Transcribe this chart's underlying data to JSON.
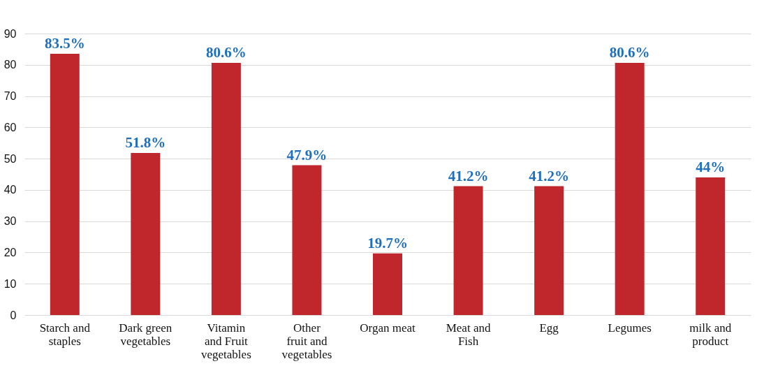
{
  "chart_data": {
    "type": "bar",
    "categories": [
      "Starch and staples",
      "Dark green vegetables",
      "Vitamin and Fruit vegetables",
      "Other fruit and vegetables",
      "Organ meat",
      "Meat and Fish",
      "Egg",
      "Legumes",
      "milk and product"
    ],
    "values": [
      83.5,
      51.8,
      80.6,
      47.9,
      19.7,
      41.2,
      41.2,
      80.6,
      44
    ],
    "value_labels": [
      "83.5%",
      "51.8%",
      "80.6%",
      "47.9%",
      "19.7%",
      "41.2%",
      "41.2%",
      "80.6%",
      "44%"
    ],
    "color": "#c0272d",
    "ylim": [
      0,
      90
    ],
    "yticks": [
      0,
      10,
      20,
      30,
      40,
      50,
      60,
      70,
      80,
      90
    ],
    "grid": "y"
  }
}
